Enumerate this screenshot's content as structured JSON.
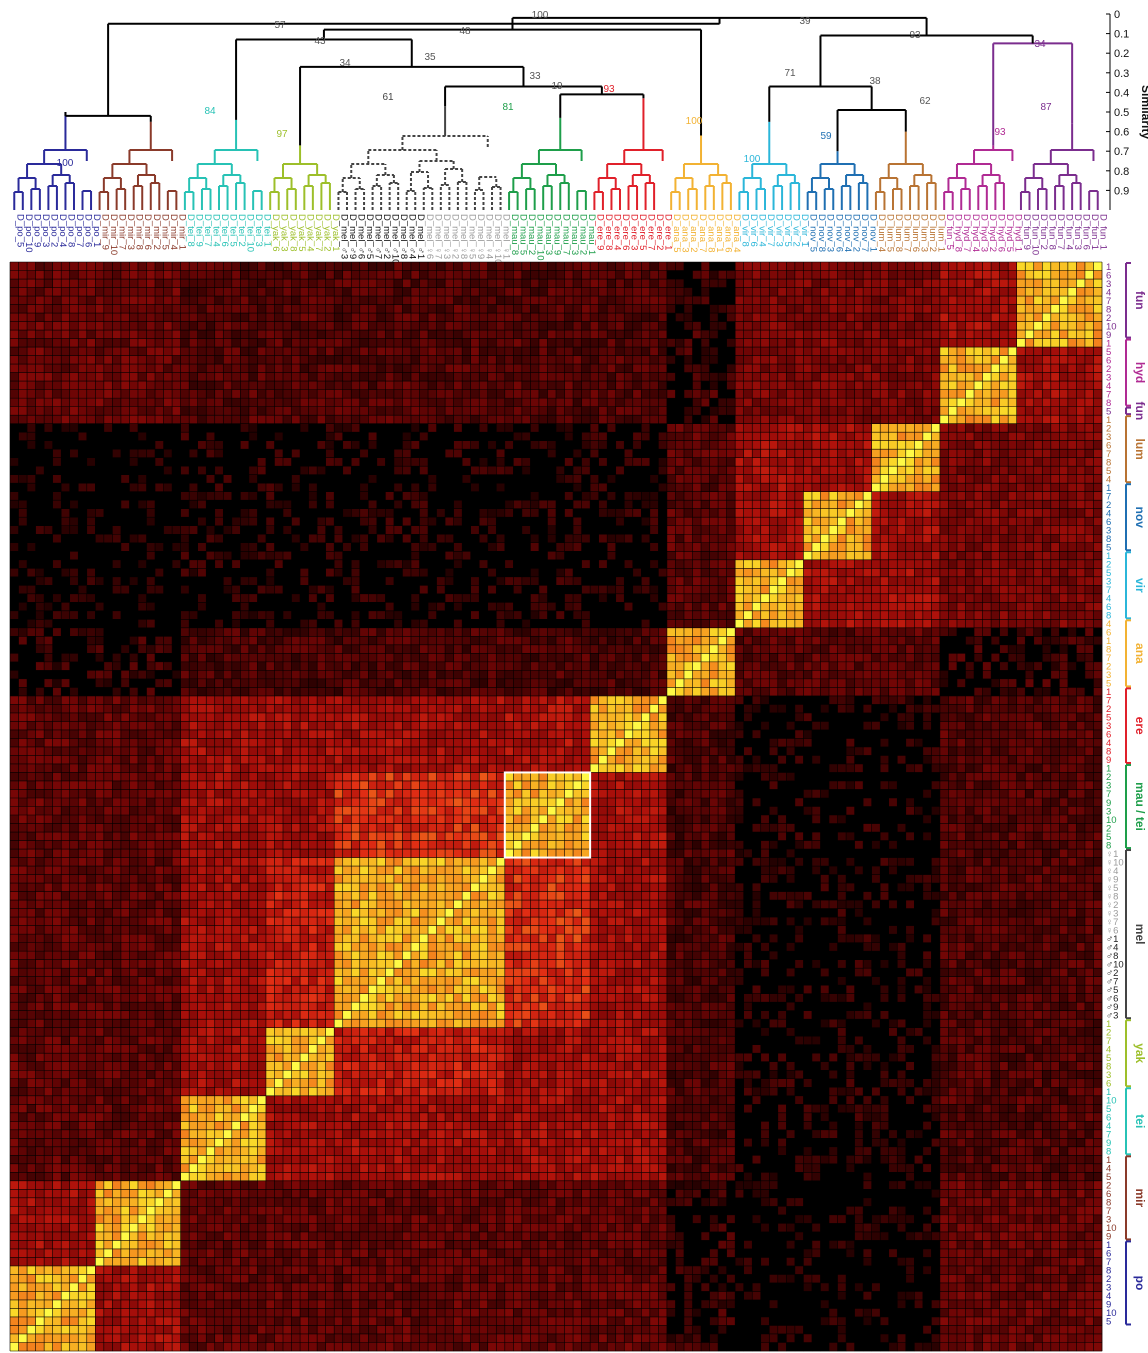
{
  "chart_data": {
    "type": "heatmap",
    "title": "",
    "similarity_axis": {
      "label": "Similarity",
      "ticks": [
        0,
        0.1,
        0.2,
        0.3,
        0.4,
        0.5,
        0.6,
        0.7,
        0.8,
        0.9
      ],
      "range": [
        0,
        1
      ]
    },
    "colors": {
      "fun": "#7b2d8e",
      "hyd": "#b02a93",
      "lum": "#b87333",
      "nov": "#1f6fb2",
      "vir": "#2bb6d9",
      "ana": "#f2b233",
      "ere": "#e0202a",
      "mau": "#1e9e4a",
      "tei": "#27c2b5",
      "mel": "#444444",
      "mel_f": "#9a9a9a",
      "yak": "#9dbf2a",
      "mir": "#8a3a2a",
      "po": "#2a2a9a",
      "root": "#000000",
      "highlight_box": "#ffffff",
      "background": "#000000"
    },
    "species_order": [
      {
        "key": "po",
        "n": 10
      },
      {
        "key": "mir",
        "n": 10
      },
      {
        "key": "tei",
        "n": 10
      },
      {
        "key": "yak",
        "n": 8
      },
      {
        "key": "mel",
        "n": 20
      },
      {
        "key": "mau",
        "n": 10
      },
      {
        "key": "ere",
        "n": 9
      },
      {
        "key": "ana",
        "n": 8
      },
      {
        "key": "vir",
        "n": 8
      },
      {
        "key": "nov",
        "n": 8
      },
      {
        "key": "lum",
        "n": 8
      },
      {
        "key": "hyd",
        "n": 9
      },
      {
        "key": "fun",
        "n": 10
      }
    ],
    "top_labels": {
      "po": [
        "D_po_5",
        "D_po_10",
        "D_po_9",
        "D_po_3",
        "D_po_2",
        "D_po_4",
        "D_po_8",
        "D_po_7",
        "D_po_6",
        "D_po_1"
      ],
      "mir": [
        "D_mir_9",
        "D_mir_10",
        "D_mir_7",
        "D_mir_3",
        "D_mir_8",
        "D_mir_6",
        "D_mir_2",
        "D_mir_5",
        "D_mir_4",
        "D_mir_1"
      ],
      "tei": [
        "D_tei_8",
        "D_tei_9",
        "D_tei_7",
        "D_tei_4",
        "D_tei_6",
        "D_tei_5",
        "D_tei_2",
        "D_tei_10",
        "D_tei_3",
        "D_tei_1"
      ],
      "yak": [
        "D_yak_6",
        "D_yak_3",
        "D_yak_8",
        "D_yak_5",
        "D_yak_4",
        "D_yak_7",
        "D_yak_2",
        "D_yak_1"
      ],
      "mel": [
        "D_mel_♂3",
        "D_mel_♂9",
        "D_mel_♂6",
        "D_mel_♂5",
        "D_mel_♂7",
        "D_mel_♂2",
        "D_mel_♂10",
        "D_mel_♂8",
        "D_mel_♂4",
        "D_mel_♂1",
        "D_mel_♀6",
        "D_mel_♀7",
        "D_mel_♀3",
        "D_mel_♀2",
        "D_mel_♀8",
        "D_mel_♀5",
        "D_mel_♀9",
        "D_mel_♀4",
        "D_mel_♀10",
        "D_mel_♀1"
      ],
      "mau": [
        "D_mau_8",
        "D_mau_5",
        "D_mau_2",
        "D_mau_10",
        "D_mau_3",
        "D_mau_9",
        "D_mau_7",
        "D_mau_3",
        "D_mau_2",
        "D_mau_1"
      ],
      "ere": [
        "D_ere_9",
        "D_ere_8",
        "D_ere_4",
        "D_ere_6",
        "D_ere_3",
        "D_ere_5",
        "D_ere_7",
        "D_ere_2",
        "D_ere_1"
      ],
      "ana": [
        "D_ana_5",
        "D_ana_3",
        "D_ana_2",
        "D_ana_7",
        "D_ana_8",
        "D_ana_1",
        "D_ana_6",
        "D_ana_4"
      ],
      "vir": [
        "D_vir_8",
        "D_vir_6",
        "D_vir_4",
        "D_vir_7",
        "D_vir_3",
        "D_vir_5",
        "D_vir_2",
        "D_vir_1"
      ],
      "nov": [
        "D_nov_5",
        "D_nov_8",
        "D_nov_3",
        "D_nov_6",
        "D_nov_4",
        "D_nov_2",
        "D_nov_7",
        "D_nov_1"
      ],
      "lum": [
        "D_lum_4",
        "D_lum_5",
        "D_lum_8",
        "D_lum_7",
        "D_lum_6",
        "D_lum_3",
        "D_lum_2",
        "D_lum_1"
      ],
      "hyd": [
        "D_fun_5",
        "D_hyd_8",
        "D_hyd_7",
        "D_hyd_4",
        "D_hyd_3",
        "D_hyd_2",
        "D_hyd_6",
        "D_hyd_5",
        "D_hyd_1"
      ],
      "fun": [
        "D_fun_9",
        "D_fun_10",
        "D_fun_2",
        "D_fun_8",
        "D_fun_7",
        "D_fun_4",
        "D_fun_3",
        "D_fun_6",
        "D_fun_1",
        "D_fun_1"
      ]
    },
    "right_groups": [
      {
        "label": "fun",
        "color_key": "fun",
        "numbers": [
          "1",
          "6",
          "3",
          "4",
          "7",
          "8",
          "2",
          "10",
          "9"
        ]
      },
      {
        "label": "hyd",
        "color_key": "hyd",
        "numbers": [
          "1",
          "5",
          "6",
          "2",
          "3",
          "4",
          "7",
          "8"
        ]
      },
      {
        "label": "fun",
        "color_key": "fun",
        "numbers": [
          "5"
        ]
      },
      {
        "label": "lum",
        "color_key": "lum",
        "numbers": [
          "1",
          "2",
          "3",
          "6",
          "7",
          "8",
          "5",
          "4"
        ]
      },
      {
        "label": "nov",
        "color_key": "nov",
        "numbers": [
          "1",
          "7",
          "2",
          "4",
          "6",
          "3",
          "8",
          "5"
        ]
      },
      {
        "label": "vir",
        "color_key": "vir",
        "numbers": [
          "1",
          "2",
          "5",
          "3",
          "7",
          "4",
          "6",
          "8"
        ]
      },
      {
        "label": "ana",
        "color_key": "ana",
        "numbers": [
          "4",
          "6",
          "1",
          "8",
          "7",
          "2",
          "3",
          "5"
        ]
      },
      {
        "label": "ere",
        "color_key": "ere",
        "numbers": [
          "1",
          "7",
          "2",
          "5",
          "3",
          "6",
          "4",
          "8",
          "9"
        ]
      },
      {
        "label": "mau / tei",
        "color_key": "mau",
        "numbers": [
          "1",
          "2",
          "3",
          "7",
          "9",
          "3",
          "10",
          "2",
          "5",
          "8"
        ]
      },
      {
        "label": "mel",
        "color_key": "mel",
        "numbers": [
          "♀1",
          "♀10",
          "♀4",
          "♀9",
          "♀5",
          "♀8",
          "♀2",
          "♀3",
          "♀7",
          "♀6",
          "♂1",
          "♂4",
          "♂8",
          "♂10",
          "♂2",
          "♂7",
          "♂5",
          "♂6",
          "♂9",
          "♂3"
        ]
      },
      {
        "label": "yak",
        "color_key": "yak",
        "numbers": [
          "1",
          "2",
          "7",
          "4",
          "5",
          "8",
          "3",
          "6"
        ]
      },
      {
        "label": "tei",
        "color_key": "tei",
        "numbers": [
          "1",
          "10",
          "5",
          "6",
          "4",
          "7",
          "9",
          "8"
        ]
      },
      {
        "label": "mir",
        "color_key": "mir",
        "numbers": [
          "1",
          "4",
          "5",
          "2",
          "6",
          "8",
          "7",
          "3",
          "10",
          "9"
        ]
      },
      {
        "label": "po",
        "color_key": "po",
        "numbers": [
          "1",
          "6",
          "7",
          "8",
          "2",
          "3",
          "4",
          "9",
          "10",
          "5"
        ]
      }
    ],
    "dendrogram_nodes": [
      {
        "label": "100",
        "sim": 0.0,
        "group": "root"
      },
      {
        "label": "39",
        "sim": 0.02,
        "group": "root"
      },
      {
        "label": "57",
        "sim": 0.05,
        "group": "root"
      },
      {
        "label": "48",
        "sim": 0.08,
        "group": "root"
      },
      {
        "label": "43",
        "sim": 0.13,
        "group": "root"
      },
      {
        "label": "93",
        "sim": 0.11,
        "group": "root"
      },
      {
        "label": "34",
        "sim": 0.15,
        "group": "fun"
      },
      {
        "label": "35",
        "sim": 0.24,
        "group": "root"
      },
      {
        "label": "34",
        "sim": 0.27,
        "group": "root"
      },
      {
        "label": "71",
        "sim": 0.33,
        "group": "root"
      },
      {
        "label": "38",
        "sim": 0.37,
        "group": "root"
      },
      {
        "label": "61",
        "sim": 0.47,
        "group": "mel"
      },
      {
        "label": "33",
        "sim": 0.41,
        "group": "root"
      },
      {
        "label": "19",
        "sim": 0.41,
        "group": "root"
      },
      {
        "label": "93",
        "sim": 0.43,
        "group": "ere"
      },
      {
        "label": "62",
        "sim": 0.49,
        "group": "root"
      },
      {
        "label": "87",
        "sim": 0.56,
        "group": "fun"
      },
      {
        "label": "84",
        "sim": 0.54,
        "group": "tei"
      },
      {
        "label": "100",
        "sim": 0.62,
        "group": "ana"
      },
      {
        "label": "100",
        "sim": 0.78,
        "group": "po"
      },
      {
        "label": "97",
        "sim": 0.67,
        "group": "yak"
      },
      {
        "label": "81",
        "sim": 0.53,
        "group": "mau"
      },
      {
        "label": "59",
        "sim": 0.7,
        "group": "nov"
      },
      {
        "label": "93",
        "sim": 0.67,
        "group": "hyd"
      },
      {
        "label": "100",
        "sim": 0.81,
        "group": "vir"
      }
    ]
  }
}
